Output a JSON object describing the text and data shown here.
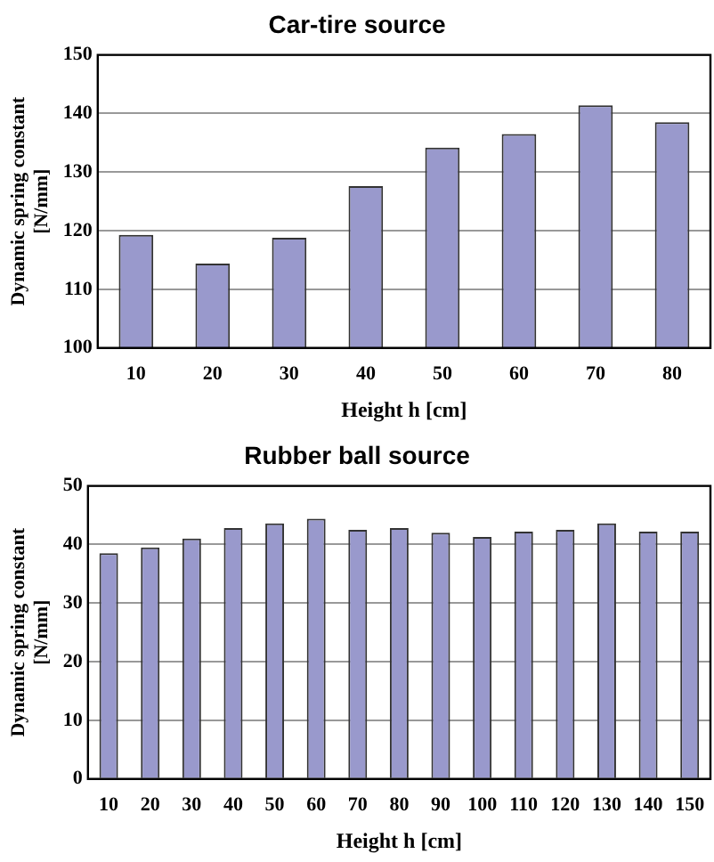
{
  "chart_data": [
    {
      "type": "bar",
      "title": "Car-tire source",
      "xlabel": "Height h [cm]",
      "ylabel": "Dynamic spring constant\n[N/mm]",
      "categories": [
        "10",
        "20",
        "30",
        "40",
        "50",
        "60",
        "70",
        "80"
      ],
      "values": [
        119.3,
        114.4,
        118.8,
        127.6,
        134.2,
        136.5,
        141.4,
        138.5
      ],
      "color": "#9999cc",
      "ylim": [
        100,
        150
      ],
      "yticks": [
        100,
        110,
        120,
        130,
        140,
        150
      ],
      "grid": "y"
    },
    {
      "type": "bar",
      "title": "Rubber ball source",
      "xlabel": "Height h [cm]",
      "ylabel": "Dynamic spring constant\n[N/mm]",
      "categories": [
        "10",
        "20",
        "30",
        "40",
        "50",
        "60",
        "70",
        "80",
        "90",
        "100",
        "110",
        "120",
        "130",
        "140",
        "150"
      ],
      "values": [
        38.5,
        39.5,
        41.0,
        42.8,
        43.6,
        44.4,
        42.5,
        42.8,
        42.0,
        41.3,
        42.2,
        42.5,
        43.6,
        42.2,
        42.2
      ],
      "color": "#9999cc",
      "ylim": [
        0,
        50
      ],
      "yticks": [
        0,
        10,
        20,
        30,
        40,
        50
      ],
      "grid": "y"
    }
  ]
}
